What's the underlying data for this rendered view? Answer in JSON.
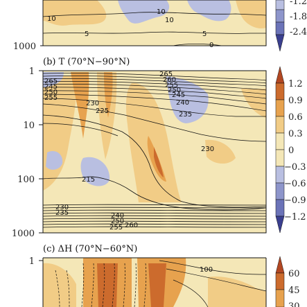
{
  "colors": {
    "neg_dark": "#3a3f8f",
    "neg_mid": "#6b73b8",
    "neg_light": "#b9bfe1",
    "zero": "#f4e7b7",
    "pos_light": "#f1cc86",
    "pos_mid": "#e7a24e",
    "pos_dark": "#cc6b2d",
    "pos_deep": "#b24722",
    "contour": "#111111"
  },
  "chart_data": [
    {
      "type": "heatmap",
      "panel": "a",
      "title": "",
      "yticks": [
        "1000"
      ],
      "colorbar_ticks": [
        "-1.2",
        "-1.8",
        "-2.4"
      ],
      "contour_labels": [
        "10",
        "10",
        "10",
        "5",
        "5",
        "0"
      ]
    },
    {
      "type": "heatmap",
      "panel": "b",
      "title": "(b) T (70°N−90°N)",
      "yscale": "log",
      "ylim": [
        1000,
        1
      ],
      "yticks": [
        "1",
        "10",
        "100",
        "1000"
      ],
      "colorbar_ticks": [
        "1.2",
        "0.9",
        "0.6",
        "0.3",
        "0",
        "−0.3",
        "−0.6",
        "−0.9",
        "−1.2"
      ],
      "contour_labels": [
        "265",
        "260",
        "255",
        "250",
        "245",
        "240",
        "235",
        "230",
        "230",
        "225",
        "215",
        "230",
        "235",
        "240",
        "250",
        "255",
        "260",
        "265",
        "245",
        "250",
        "255"
      ]
    },
    {
      "type": "heatmap",
      "panel": "c",
      "title": "(c) ΔH (70°N−60°N)",
      "yticks": [
        "1"
      ],
      "colorbar_ticks": [
        "60",
        "45",
        "30"
      ],
      "contour_labels": [
        "100"
      ]
    }
  ]
}
